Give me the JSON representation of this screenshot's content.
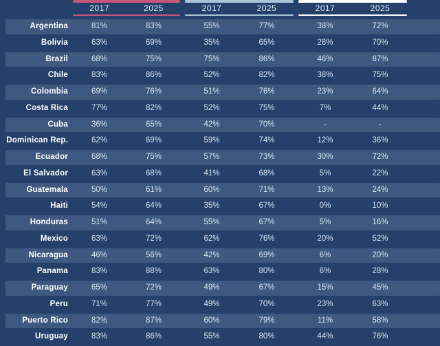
{
  "table": {
    "column_groups": [
      {
        "name": "group-1",
        "color": "#c8567b",
        "years": [
          "2017",
          "2025"
        ]
      },
      {
        "name": "group-2",
        "color": "#a9c5d7",
        "years": [
          "2017",
          "2025"
        ]
      },
      {
        "name": "group-3",
        "color": "#ffffff",
        "years": [
          "2017",
          "2025"
        ]
      }
    ],
    "rows": [
      {
        "country": "Argentina",
        "values": [
          "81%",
          "83%",
          "55%",
          "77%",
          "38%",
          "72%"
        ]
      },
      {
        "country": "Bolivia",
        "values": [
          "63%",
          "69%",
          "35%",
          "65%",
          "28%",
          "70%"
        ]
      },
      {
        "country": "Brazil",
        "values": [
          "68%",
          "75%",
          "75%",
          "86%",
          "46%",
          "87%"
        ]
      },
      {
        "country": "Chile",
        "values": [
          "83%",
          "86%",
          "52%",
          "82%",
          "38%",
          "75%"
        ]
      },
      {
        "country": "Colombia",
        "values": [
          "69%",
          "76%",
          "51%",
          "76%",
          "23%",
          "64%"
        ]
      },
      {
        "country": "Costa Rica",
        "values": [
          "77%",
          "82%",
          "52%",
          "75%",
          "7%",
          "44%"
        ]
      },
      {
        "country": "Cuba",
        "values": [
          "36%",
          "65%",
          "42%",
          "70%",
          "-",
          "-"
        ]
      },
      {
        "country": "Dominican Rep.",
        "values": [
          "62%",
          "69%",
          "59%",
          "74%",
          "12%",
          "36%"
        ]
      },
      {
        "country": "Ecuador",
        "values": [
          "68%",
          "75%",
          "57%",
          "73%",
          "30%",
          "72%"
        ]
      },
      {
        "country": "El Salvador",
        "values": [
          "63%",
          "68%",
          "41%",
          "68%",
          "5%",
          "22%"
        ]
      },
      {
        "country": "Guatemala",
        "values": [
          "50%",
          "61%",
          "60%",
          "71%",
          "13%",
          "24%"
        ]
      },
      {
        "country": "Haiti",
        "values": [
          "54%",
          "64%",
          "35%",
          "67%",
          "0%",
          "10%"
        ]
      },
      {
        "country": "Honduras",
        "values": [
          "51%",
          "64%",
          "55%",
          "67%",
          "5%",
          "16%"
        ]
      },
      {
        "country": "Mexico",
        "values": [
          "63%",
          "72%",
          "62%",
          "76%",
          "20%",
          "52%"
        ]
      },
      {
        "country": "Nicaragua",
        "values": [
          "46%",
          "56%",
          "42%",
          "69%",
          "6%",
          "20%"
        ]
      },
      {
        "country": "Panama",
        "values": [
          "83%",
          "88%",
          "63%",
          "80%",
          "6%",
          "28%"
        ]
      },
      {
        "country": "Paraguay",
        "values": [
          "65%",
          "72%",
          "49%",
          "67%",
          "15%",
          "45%"
        ]
      },
      {
        "country": "Peru",
        "values": [
          "71%",
          "77%",
          "49%",
          "70%",
          "23%",
          "63%"
        ]
      },
      {
        "country": "Puerto Rico",
        "values": [
          "82%",
          "87%",
          "60%",
          "79%",
          "11%",
          "58%"
        ]
      },
      {
        "country": "Uruguay",
        "values": [
          "83%",
          "86%",
          "55%",
          "80%",
          "44%",
          "76%"
        ]
      }
    ]
  },
  "colors": {
    "background": "#24406b",
    "row_band": "#3e5880",
    "group1_accent": "#c8567b",
    "group2_accent": "#a9c5d7",
    "group3_accent": "#ffffff",
    "country_text": "#ffffff",
    "value_text": "#d9e4f0"
  },
  "chart_data": {
    "type": "table",
    "title": "",
    "row_header": "country",
    "column_groups": [
      {
        "accent_color": "#c8567b",
        "columns": [
          "2017",
          "2025"
        ]
      },
      {
        "accent_color": "#a9c5d7",
        "columns": [
          "2017",
          "2025"
        ]
      },
      {
        "accent_color": "#ffffff",
        "columns": [
          "2017",
          "2025"
        ]
      }
    ],
    "columns": [
      "2017",
      "2025",
      "2017",
      "2025",
      "2017",
      "2025"
    ],
    "unit": "percent",
    "rows": [
      {
        "country": "Argentina",
        "values": [
          81,
          83,
          55,
          77,
          38,
          72
        ]
      },
      {
        "country": "Bolivia",
        "values": [
          63,
          69,
          35,
          65,
          28,
          70
        ]
      },
      {
        "country": "Brazil",
        "values": [
          68,
          75,
          75,
          86,
          46,
          87
        ]
      },
      {
        "country": "Chile",
        "values": [
          83,
          86,
          52,
          82,
          38,
          75
        ]
      },
      {
        "country": "Colombia",
        "values": [
          69,
          76,
          51,
          76,
          23,
          64
        ]
      },
      {
        "country": "Costa Rica",
        "values": [
          77,
          82,
          52,
          75,
          7,
          44
        ]
      },
      {
        "country": "Cuba",
        "values": [
          36,
          65,
          42,
          70,
          null,
          null
        ]
      },
      {
        "country": "Dominican Rep.",
        "values": [
          62,
          69,
          59,
          74,
          12,
          36
        ]
      },
      {
        "country": "Ecuador",
        "values": [
          68,
          75,
          57,
          73,
          30,
          72
        ]
      },
      {
        "country": "El Salvador",
        "values": [
          63,
          68,
          41,
          68,
          5,
          22
        ]
      },
      {
        "country": "Guatemala",
        "values": [
          50,
          61,
          60,
          71,
          13,
          24
        ]
      },
      {
        "country": "Haiti",
        "values": [
          54,
          64,
          35,
          67,
          0,
          10
        ]
      },
      {
        "country": "Honduras",
        "values": [
          51,
          64,
          55,
          67,
          5,
          16
        ]
      },
      {
        "country": "Mexico",
        "values": [
          63,
          72,
          62,
          76,
          20,
          52
        ]
      },
      {
        "country": "Nicaragua",
        "values": [
          46,
          56,
          42,
          69,
          6,
          20
        ]
      },
      {
        "country": "Panama",
        "values": [
          83,
          88,
          63,
          80,
          6,
          28
        ]
      },
      {
        "country": "Paraguay",
        "values": [
          65,
          72,
          49,
          67,
          15,
          45
        ]
      },
      {
        "country": "Peru",
        "values": [
          71,
          77,
          49,
          70,
          23,
          63
        ]
      },
      {
        "country": "Puerto Rico",
        "values": [
          82,
          87,
          60,
          79,
          11,
          58
        ]
      },
      {
        "country": "Uruguay",
        "values": [
          83,
          86,
          55,
          80,
          44,
          76
        ]
      }
    ]
  }
}
